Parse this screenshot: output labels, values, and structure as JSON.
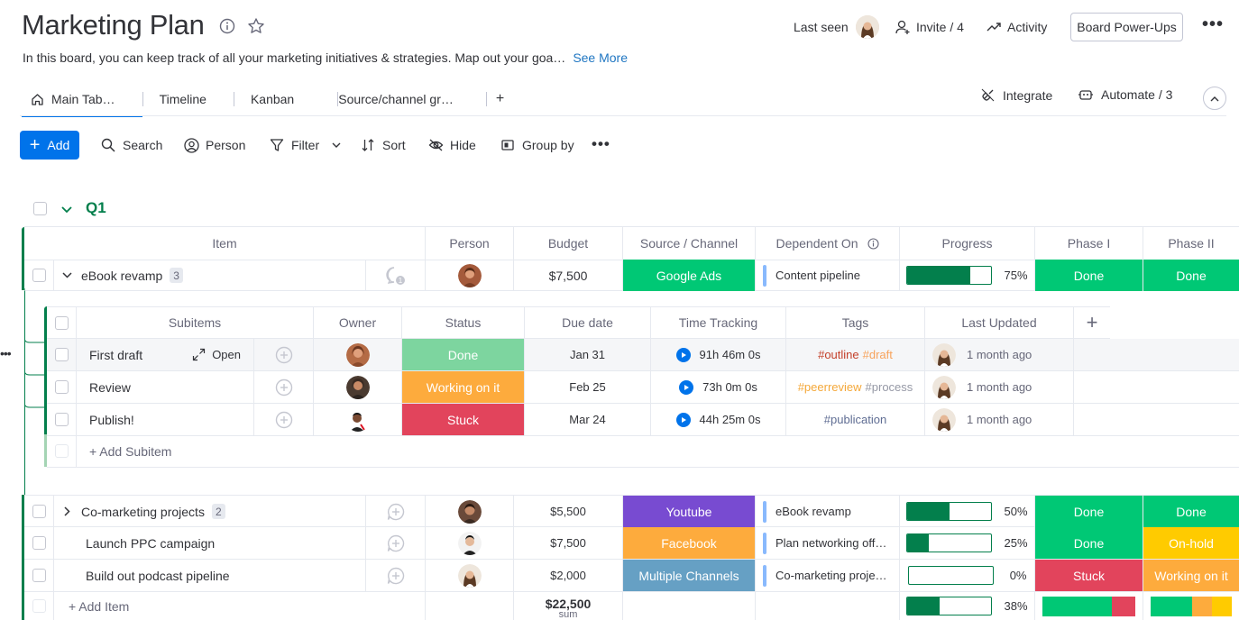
{
  "header": {
    "title": "Marketing Plan",
    "description": "In this board, you can keep track of all your marketing initiatives & strategies. Map out your goa…",
    "see_more": "See More",
    "last_seen": "Last seen",
    "invite": "Invite / 4",
    "activity": "Activity",
    "powerups": "Board Power-Ups"
  },
  "tabs": [
    {
      "label": "Main Tab…"
    },
    {
      "label": "Timeline"
    },
    {
      "label": "Kanban"
    },
    {
      "label": "Source/channel gr…"
    },
    {
      "label": "+"
    }
  ],
  "tab_actions": {
    "integrate": "Integrate",
    "automate": "Automate / 3"
  },
  "toolbar": {
    "add": "Add",
    "search": "Search",
    "person": "Person",
    "filter": "Filter",
    "sort": "Sort",
    "hide": "Hide",
    "group_by": "Group by"
  },
  "group": {
    "name": "Q1",
    "columns": {
      "item": "Item",
      "person": "Person",
      "budget": "Budget",
      "source": "Source / Channel",
      "dependent": "Dependent On",
      "progress": "Progress",
      "phase1": "Phase I",
      "phase2": "Phase II"
    },
    "items": [
      {
        "name": "eBook revamp",
        "count": "3",
        "budget": "$7,500",
        "source": "Google Ads",
        "dependent": "Content pipeline",
        "progress": 75,
        "progress_label": "75%",
        "phase1": "Done",
        "phase2": "Done"
      },
      {
        "name": "Co-marketing projects",
        "count": "2",
        "budget": "$5,500",
        "source": "Youtube",
        "dependent": "eBook revamp",
        "progress": 50,
        "progress_label": "50%",
        "phase1": "Done",
        "phase2": "Done"
      },
      {
        "name": "Launch PPC campaign",
        "budget": "$7,500",
        "source": "Facebook",
        "dependent": "Plan networking off…",
        "progress": 25,
        "progress_label": "25%",
        "phase1": "Done",
        "phase2": "On-hold"
      },
      {
        "name": "Build out podcast pipeline",
        "budget": "$2,000",
        "source": "Multiple Channels",
        "dependent": "Co-marketing proje…",
        "progress": 0,
        "progress_label": "0%",
        "phase1": "Stuck",
        "phase2": "Working on it"
      }
    ],
    "add_item": "+ Add Item",
    "sum_value": "$22,500",
    "sum_label": "sum",
    "sum_progress": 38,
    "sum_progress_label": "38%"
  },
  "subitems": {
    "columns": {
      "subitems": "Subitems",
      "owner": "Owner",
      "status": "Status",
      "due": "Due date",
      "time": "Time Tracking",
      "tags": "Tags",
      "updated": "Last Updated",
      "add": "+"
    },
    "open_label": "Open",
    "rows": [
      {
        "name": "First draft",
        "status": "Done",
        "due": "Jan 31",
        "time": "91h 46m 0s",
        "tags": [
          "#outline",
          "#draft"
        ],
        "updated": "1 month ago"
      },
      {
        "name": "Review",
        "status": "Working on it",
        "due": "Feb 25",
        "time": "73h 0m 0s",
        "tags": [
          "#peerreview",
          "#process"
        ],
        "updated": "1 month ago"
      },
      {
        "name": "Publish!",
        "status": "Stuck",
        "due": "Mar 24",
        "time": "44h 25m 0s",
        "tags": [
          "#publication"
        ],
        "updated": "1 month ago"
      }
    ],
    "add_subitem": "+ Add Subitem"
  },
  "colors": {
    "primary": "#0073ea",
    "group_green": "#037f4c",
    "done": "#00c875",
    "working": "#fdab3d",
    "stuck": "#e2445c",
    "onhold": "#ffcb00",
    "youtube": "#784bd1",
    "facebook": "#fdab3d",
    "multiple": "#66a0c4"
  }
}
